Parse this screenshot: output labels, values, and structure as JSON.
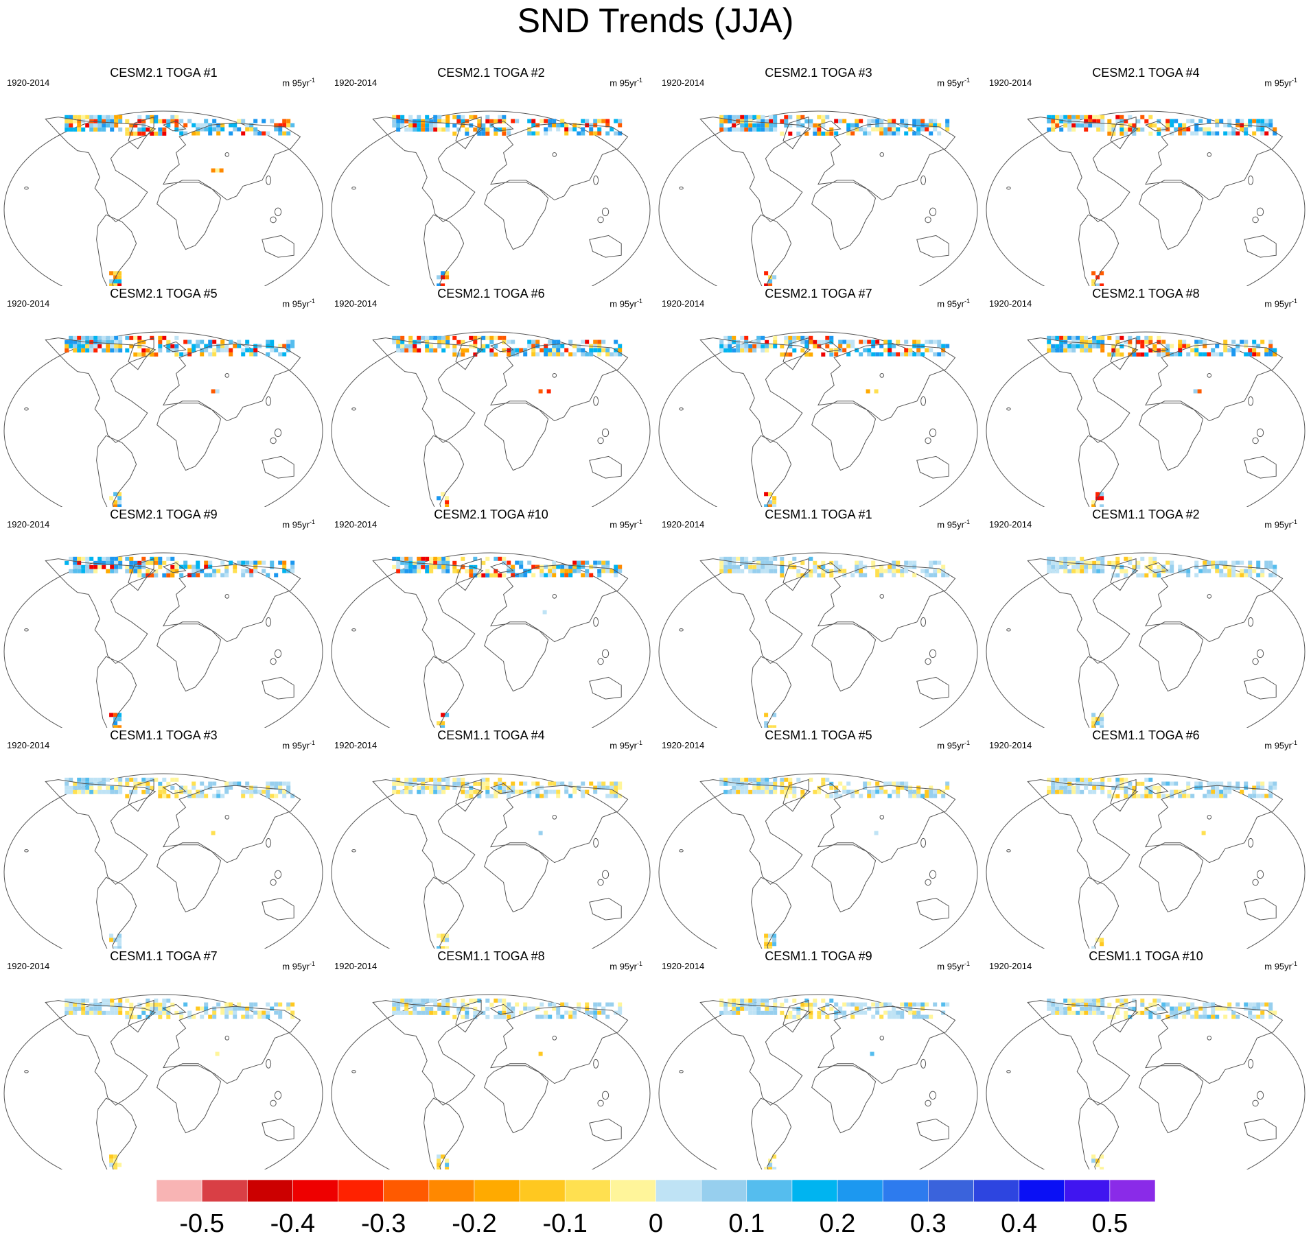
{
  "title": "SND Trends (JJA)",
  "panel_period": "1920-2014",
  "panel_units": {
    "base": "m 95yr",
    "exponent": "-1"
  },
  "panels": [
    "CESM2.1 TOGA #1",
    "CESM2.1 TOGA #2",
    "CESM2.1 TOGA #3",
    "CESM2.1 TOGA #4",
    "CESM2.1 TOGA #5",
    "CESM2.1 TOGA #6",
    "CESM2.1 TOGA #7",
    "CESM2.1 TOGA #8",
    "CESM2.1 TOGA #9",
    "CESM2.1 TOGA #10",
    "CESM1.1 TOGA #1",
    "CESM1.1 TOGA #2",
    "CESM1.1 TOGA #3",
    "CESM1.1 TOGA #4",
    "CESM1.1 TOGA #5",
    "CESM1.1 TOGA #6",
    "CESM1.1 TOGA #7",
    "CESM1.1 TOGA #8",
    "CESM1.1 TOGA #9",
    "CESM1.1 TOGA #10"
  ],
  "chart_data": {
    "type": "heatmap",
    "title": "SND Trends (JJA)",
    "projection": "robinson",
    "colorbar": {
      "labels": [
        "-0.5",
        "-0.4",
        "-0.3",
        "-0.2",
        "-0.1",
        "0",
        "0.1",
        "0.2",
        "0.3",
        "0.4",
        "0.5"
      ],
      "colors": [
        "#f8b4b4",
        "#d93f45",
        "#cc0000",
        "#ee0000",
        "#ff2200",
        "#ff5a00",
        "#ff8800",
        "#ffaa00",
        "#ffc820",
        "#ffe050",
        "#fff59a",
        "#bfe3f5",
        "#97cfee",
        "#55bdee",
        "#00b4f0",
        "#1c98f0",
        "#2d7bee",
        "#3a63dc",
        "#2d45e0",
        "#0a10f5",
        "#4015f0",
        "#8a2be8"
      ]
    }
  }
}
